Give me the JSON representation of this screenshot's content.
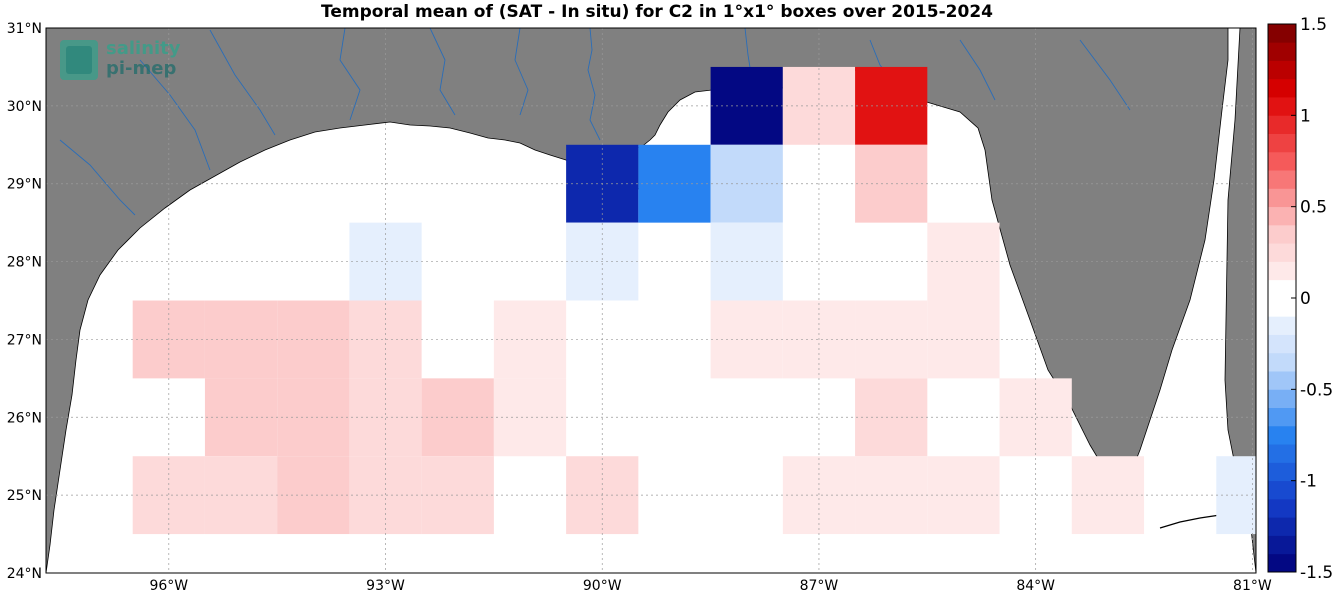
{
  "chart_data": {
    "type": "heatmap",
    "title": "Temporal mean of (SAT - In situ) for C2 in 1°x1° boxes over 2015-2024",
    "xlim": [
      -97.7,
      -80.95
    ],
    "ylim": [
      24,
      31
    ],
    "x_ticks": [
      {
        "value": -96,
        "label": "96°W"
      },
      {
        "value": -93,
        "label": "93°W"
      },
      {
        "value": -90,
        "label": "90°W"
      },
      {
        "value": -87,
        "label": "87°W"
      },
      {
        "value": -84,
        "label": "84°W"
      },
      {
        "value": -81,
        "label": "81°W"
      }
    ],
    "y_ticks": [
      {
        "value": 24,
        "label": "24°N"
      },
      {
        "value": 25,
        "label": "25°N"
      },
      {
        "value": 26,
        "label": "26°N"
      },
      {
        "value": 27,
        "label": "27°N"
      },
      {
        "value": 28,
        "label": "28°N"
      },
      {
        "value": 29,
        "label": "29°N"
      },
      {
        "value": 30,
        "label": "30°N"
      },
      {
        "value": 31,
        "label": "31°N"
      }
    ],
    "colorbar": {
      "range": [
        -1.5,
        1.5
      ],
      "step": 0.1,
      "ticks": [
        {
          "value": 1.5,
          "label": "1.5"
        },
        {
          "value": 1,
          "label": "1"
        },
        {
          "value": 0.5,
          "label": "0.5"
        },
        {
          "value": 0,
          "label": "0"
        },
        {
          "value": -0.5,
          "label": "-0.5"
        },
        {
          "value": -1,
          "label": "-1"
        },
        {
          "value": -1.5,
          "label": "-1.5"
        }
      ]
    },
    "cells_note_unused": "",
    "cells": [
      {
        "lon": -88,
        "lat": 30,
        "value": -1.45
      },
      {
        "lon": -87,
        "lat": 30,
        "value": 0.25
      },
      {
        "lon": -86,
        "lat": 30,
        "value": 1.05
      },
      {
        "lon": -90,
        "lat": 29,
        "value": -1.25
      },
      {
        "lon": -89,
        "lat": 29,
        "value": -0.75
      },
      {
        "lon": -88,
        "lat": 29,
        "value": -0.3
      },
      {
        "lon": -86,
        "lat": 29,
        "value": 0.35
      },
      {
        "lon": -93,
        "lat": 28,
        "value": -0.15
      },
      {
        "lon": -90,
        "lat": 28,
        "value": -0.15
      },
      {
        "lon": -88,
        "lat": 28,
        "value": -0.15
      },
      {
        "lon": -85,
        "lat": 28,
        "value": 0.15
      },
      {
        "lon": -96,
        "lat": 27,
        "value": 0.35
      },
      {
        "lon": -95,
        "lat": 27,
        "value": 0.35
      },
      {
        "lon": -94,
        "lat": 27,
        "value": 0.35
      },
      {
        "lon": -93,
        "lat": 27,
        "value": 0.2
      },
      {
        "lon": -91,
        "lat": 27,
        "value": 0.15
      },
      {
        "lon": -88,
        "lat": 27,
        "value": 0.15
      },
      {
        "lon": -87,
        "lat": 27,
        "value": 0.15
      },
      {
        "lon": -86,
        "lat": 27,
        "value": 0.15
      },
      {
        "lon": -85,
        "lat": 27,
        "value": 0.15
      },
      {
        "lon": -95,
        "lat": 26,
        "value": 0.35
      },
      {
        "lon": -94,
        "lat": 26,
        "value": 0.35
      },
      {
        "lon": -93,
        "lat": 26,
        "value": 0.2
      },
      {
        "lon": -92,
        "lat": 26,
        "value": 0.4
      },
      {
        "lon": -91,
        "lat": 26,
        "value": 0.15
      },
      {
        "lon": -86,
        "lat": 26,
        "value": 0.2
      },
      {
        "lon": -84,
        "lat": 26,
        "value": 0.15
      },
      {
        "lon": -96,
        "lat": 25,
        "value": 0.2
      },
      {
        "lon": -95,
        "lat": 25,
        "value": 0.2
      },
      {
        "lon": -94,
        "lat": 25,
        "value": 0.35
      },
      {
        "lon": -93,
        "lat": 25,
        "value": 0.2
      },
      {
        "lon": -92,
        "lat": 25,
        "value": 0.2
      },
      {
        "lon": -90,
        "lat": 25,
        "value": 0.2
      },
      {
        "lon": -87,
        "lat": 25,
        "value": 0.15
      },
      {
        "lon": -86,
        "lat": 25,
        "value": 0.15
      },
      {
        "lon": -85,
        "lat": 25,
        "value": 0.15
      },
      {
        "lon": -83,
        "lat": 25,
        "value": 0.15
      },
      {
        "lon": -81,
        "lat": 25,
        "value": -0.15
      }
    ],
    "colors": {
      "land": "#808080",
      "ocean": "#ffffff",
      "rivers": "#2a6db8",
      "grid": "#9a9a9a"
    }
  },
  "logo": {
    "line1": "salinity",
    "line2": "pi-mep"
  }
}
